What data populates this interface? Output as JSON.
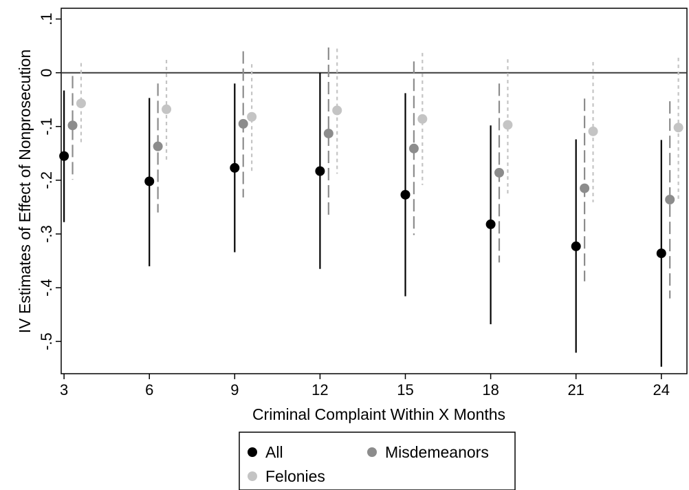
{
  "chart_data": {
    "type": "scatter",
    "xlabel": "Criminal Complaint Within X Months",
    "ylabel": "IV Estimates of Effect of Nonprosecution",
    "x_ticks": [
      {
        "value": 3,
        "label": "3"
      },
      {
        "value": 6,
        "label": "6"
      },
      {
        "value": 9,
        "label": "9"
      },
      {
        "value": 12,
        "label": "12"
      },
      {
        "value": 15,
        "label": "15"
      },
      {
        "value": 18,
        "label": "18"
      },
      {
        "value": 21,
        "label": "21"
      },
      {
        "value": 24,
        "label": "24"
      }
    ],
    "y_ticks": [
      {
        "value": 0.1,
        "label": ".1"
      },
      {
        "value": 0,
        "label": "0"
      },
      {
        "value": -0.1,
        "label": "-.1"
      },
      {
        "value": -0.2,
        "label": "-.2"
      },
      {
        "value": -0.3,
        "label": "-.3"
      },
      {
        "value": -0.4,
        "label": "-.4"
      },
      {
        "value": -0.5,
        "label": "-.5"
      }
    ],
    "xlim": [
      2.9,
      24.9
    ],
    "ylim": [
      -0.56,
      0.12
    ],
    "reference_line_y": 0,
    "grid": false,
    "legend_position": "bottom",
    "series": [
      {
        "name": "All",
        "color": "#000000",
        "line_style": "solid",
        "x_offset": 0,
        "points": [
          {
            "x": 3,
            "y": -0.155,
            "lo": -0.278,
            "hi": -0.033
          },
          {
            "x": 6,
            "y": -0.202,
            "lo": -0.36,
            "hi": -0.047
          },
          {
            "x": 9,
            "y": -0.177,
            "lo": -0.334,
            "hi": -0.02
          },
          {
            "x": 12,
            "y": -0.183,
            "lo": -0.365,
            "hi": 0.0
          },
          {
            "x": 15,
            "y": -0.227,
            "lo": -0.416,
            "hi": -0.038
          },
          {
            "x": 18,
            "y": -0.282,
            "lo": -0.468,
            "hi": -0.098
          },
          {
            "x": 21,
            "y": -0.323,
            "lo": -0.521,
            "hi": -0.124
          },
          {
            "x": 24,
            "y": -0.336,
            "lo": -0.547,
            "hi": -0.125
          }
        ]
      },
      {
        "name": "Misdemeanors",
        "color": "#8c8c8c",
        "line_style": "longdash",
        "x_offset": 0.3,
        "points": [
          {
            "x": 3,
            "y": -0.098,
            "lo": -0.199,
            "hi": -0.006
          },
          {
            "x": 6,
            "y": -0.137,
            "lo": -0.26,
            "hi": -0.02
          },
          {
            "x": 9,
            "y": -0.095,
            "lo": -0.232,
            "hi": 0.04
          },
          {
            "x": 12,
            "y": -0.113,
            "lo": -0.273,
            "hi": 0.047
          },
          {
            "x": 15,
            "y": -0.141,
            "lo": -0.302,
            "hi": 0.021
          },
          {
            "x": 18,
            "y": -0.186,
            "lo": -0.353,
            "hi": -0.02
          },
          {
            "x": 21,
            "y": -0.215,
            "lo": -0.388,
            "hi": -0.048
          },
          {
            "x": 24,
            "y": -0.236,
            "lo": -0.42,
            "hi": -0.053
          }
        ]
      },
      {
        "name": "Felonies",
        "color": "#c4c4c4",
        "line_style": "shortdash",
        "x_offset": 0.6,
        "points": [
          {
            "x": 3,
            "y": -0.057,
            "lo": -0.134,
            "hi": 0.018
          },
          {
            "x": 6,
            "y": -0.068,
            "lo": -0.164,
            "hi": 0.024
          },
          {
            "x": 9,
            "y": -0.082,
            "lo": -0.184,
            "hi": 0.016
          },
          {
            "x": 12,
            "y": -0.07,
            "lo": -0.188,
            "hi": 0.045
          },
          {
            "x": 15,
            "y": -0.086,
            "lo": -0.209,
            "hi": 0.037
          },
          {
            "x": 18,
            "y": -0.097,
            "lo": -0.226,
            "hi": 0.025
          },
          {
            "x": 21,
            "y": -0.109,
            "lo": -0.241,
            "hi": 0.02
          },
          {
            "x": 24,
            "y": -0.102,
            "lo": -0.236,
            "hi": 0.028
          }
        ]
      }
    ]
  }
}
